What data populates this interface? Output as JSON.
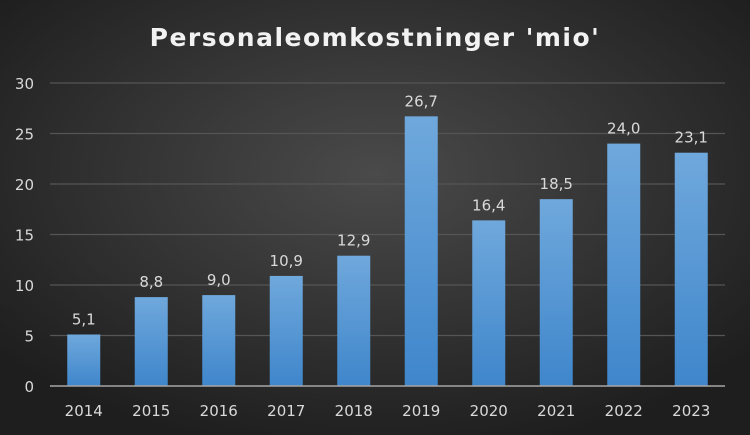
{
  "chart_data": {
    "type": "bar",
    "title": "Personaleomkostninger 'mio'",
    "xlabel": "",
    "ylabel": "",
    "categories": [
      "2014",
      "2015",
      "2016",
      "2017",
      "2018",
      "2019",
      "2020",
      "2021",
      "2022",
      "2023"
    ],
    "values": [
      5.1,
      8.8,
      9.0,
      10.9,
      12.9,
      26.7,
      16.4,
      18.5,
      24.0,
      23.1
    ],
    "data_labels": [
      "5,1",
      "8,8",
      "9,0",
      "10,9",
      "12,9",
      "26,7",
      "16,4",
      "18,5",
      "24,0",
      "23,1"
    ],
    "ylim": [
      0,
      30
    ],
    "yticks": [
      0,
      5,
      10,
      15,
      20,
      25,
      30
    ],
    "grid": true,
    "legend": "none",
    "colors": {
      "bar_top": "#6fa8dc",
      "bar_bottom": "#3f86cb",
      "text": "#d9d9d9",
      "title": "#f2f2f2",
      "grid": "#555555",
      "axis": "#a6a6a6"
    }
  }
}
